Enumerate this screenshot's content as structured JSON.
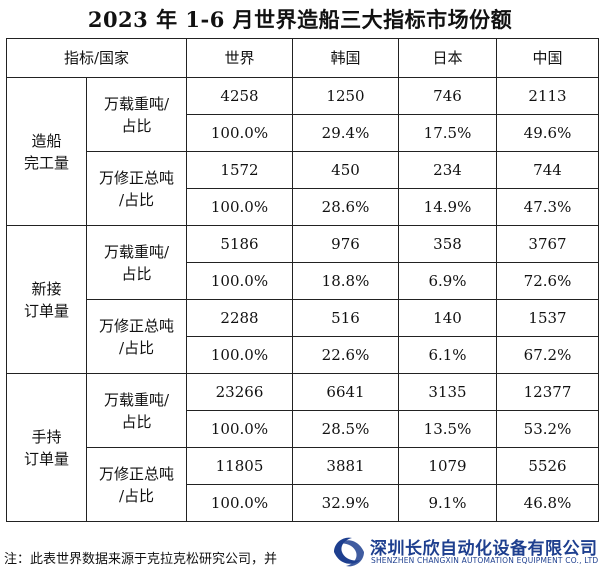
{
  "title": "2023 年 1-6 月世界造船三大指标市场份额",
  "table": {
    "corner": "指标/国家",
    "columns": [
      "世界",
      "韩国",
      "日本",
      "中国"
    ],
    "groups": [
      {
        "name": "造船\n完工量",
        "subs": [
          {
            "label": "万载重吨/\n占比",
            "values": [
              "4258",
              "1250",
              "746",
              "2113"
            ],
            "shares": [
              "100.0%",
              "29.4%",
              "17.5%",
              "49.6%"
            ]
          },
          {
            "label": "万修正总吨\n/占比",
            "values": [
              "1572",
              "450",
              "234",
              "744"
            ],
            "shares": [
              "100.0%",
              "28.6%",
              "14.9%",
              "47.3%"
            ]
          }
        ]
      },
      {
        "name": "新接\n订单量",
        "subs": [
          {
            "label": "万载重吨/\n占比",
            "values": [
              "5186",
              "976",
              "358",
              "3767"
            ],
            "shares": [
              "100.0%",
              "18.8%",
              "6.9%",
              "72.6%"
            ]
          },
          {
            "label": "万修正总吨\n/占比",
            "values": [
              "2288",
              "516",
              "140",
              "1537"
            ],
            "shares": [
              "100.0%",
              "22.6%",
              "6.1%",
              "67.2%"
            ]
          }
        ]
      },
      {
        "name": "手持\n订单量",
        "subs": [
          {
            "label": "万载重吨/\n占比",
            "values": [
              "23266",
              "6641",
              "3135",
              "12377"
            ],
            "shares": [
              "100.0%",
              "28.5%",
              "13.5%",
              "53.2%"
            ]
          },
          {
            "label": "万修正总吨\n/占比",
            "values": [
              "11805",
              "3881",
              "1079",
              "5526"
            ],
            "shares": [
              "100.0%",
              "32.9%",
              "9.1%",
              "46.8%"
            ]
          }
        ]
      }
    ]
  },
  "footnote": "注：此表世界数据来源于克拉克松研究公司，并",
  "watermark": {
    "name_cn": "深圳长欣自动化设备有限公司",
    "name_en": "SHENZHEN CHANGXIN AUTOMATION EQUIPMENT CO., LTD",
    "color": "#1e3f8f"
  }
}
